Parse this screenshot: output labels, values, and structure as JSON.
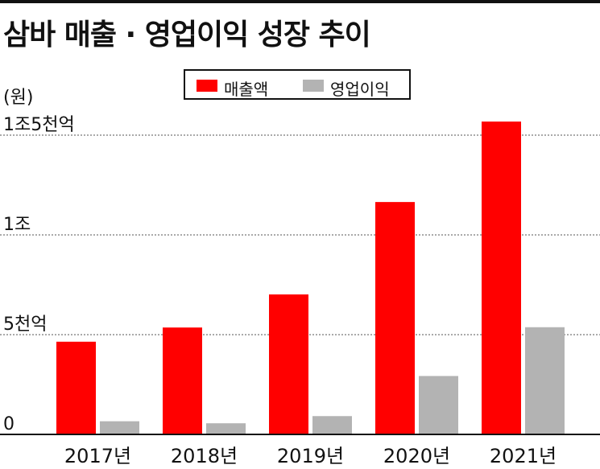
{
  "title": "삼바 매출 · 영업이익 성장 추이",
  "unit_label": "(원)",
  "legend": [
    {
      "name": "매출액",
      "color": "#ff0000"
    },
    {
      "name": "영업이익",
      "color": "#b3b3b3"
    }
  ],
  "chart_data": {
    "type": "bar",
    "title": "삼바 매출 · 영업이익 성장 추이",
    "ylabel": "(원)",
    "categories": [
      "2017년",
      "2018년",
      "2019년",
      "2020년",
      "2021년"
    ],
    "series": [
      {
        "name": "매출액",
        "color": "#ff0000",
        "values": [
          4646,
          5358,
          7016,
          11648,
          15680
        ]
      },
      {
        "name": "영업이익",
        "color": "#b3b3b3",
        "values": [
          660,
          558,
          917,
          2928,
          5373
        ]
      }
    ],
    "y_ticks": [
      {
        "value": 0,
        "label": "0"
      },
      {
        "value": 5000,
        "label": "5천억"
      },
      {
        "value": 10000,
        "label": "1조"
      },
      {
        "value": 15000,
        "label": "1조5천억"
      }
    ],
    "ylim": [
      0,
      15000
    ],
    "grid": "dashed horizontal",
    "legend_position": "top-center"
  }
}
